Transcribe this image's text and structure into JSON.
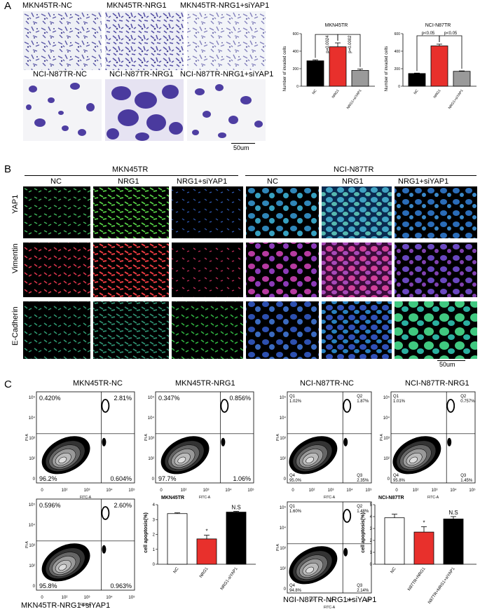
{
  "panelA": {
    "letter": "A",
    "top_titles": [
      "MKN45TR-NC",
      "MKN45TR-NRG1",
      "MKN45TR-NRG1+siYAP1"
    ],
    "bottom_titles": [
      "NCI-N87TR-NC",
      "NCI-N87TR-NRG1",
      "NCI-N87TR-NRG1+siYAP1"
    ],
    "scale": "50um",
    "colors": {
      "mkn_stain": "#6b66b8",
      "nci_stain": "#4d3fa0",
      "bg": "#eef0f4"
    }
  },
  "panelB": {
    "letter": "B",
    "group1": "MKN45TR",
    "group2": "NCI-N87TR",
    "columns": [
      "NC",
      "NRG1",
      "NRG1+siYAP1",
      "NC",
      "NRG1",
      "NRG1+siYAP1"
    ],
    "rows": [
      "YAP1",
      "Vimentin",
      "E-Cadherin"
    ],
    "scale": "50um"
  },
  "panelC": {
    "letter": "C",
    "flow": [
      {
        "title": "MKN45TR-NC",
        "q1": "0.420%",
        "q2": "2.81%",
        "q4": "96.2%",
        "q3": "0.604%"
      },
      {
        "title": "MKN45TR-NRG1",
        "q1": "0.347%",
        "q2": "0.856%",
        "q4": "97.7%",
        "q3": "1.06%"
      },
      {
        "title": "NCI-N87TR-NC",
        "q1": "1.02%",
        "q2": "1.87%",
        "q4": "95.0%",
        "q3": "2.35%",
        "q1n": "Q1",
        "q2n": "Q2",
        "q3n": "Q3",
        "q4n": "Q4"
      },
      {
        "title": "NCI-N87TR-NRG1",
        "q1": "1.01%",
        "q2": "0.757%",
        "q4": "95.8%",
        "q3": "1.45%",
        "q1n": "Q1",
        "q2n": "Q2",
        "q3n": "Q3",
        "q4n": "Q4"
      },
      {
        "title": "MKN45TR-NRG1+siYAP1",
        "q1": "0.596%",
        "q2": "2.60%",
        "q4": "95.8%",
        "q3": "0.963%"
      },
      {
        "title": "NCI-N87TR-NRG1+siYAP1",
        "q1": "1.60%",
        "q2": "1.48%",
        "q4": "94.8%",
        "q3": "2.14%",
        "q1n": "Q1",
        "q2n": "Q2",
        "q3n": "Q3",
        "q4n": "Q4"
      }
    ],
    "axis_x": "FITC-A",
    "axis_y": "PI-A"
  },
  "chart_data": [
    {
      "type": "bar",
      "title": "MKN45TR",
      "ylabel": "Number of invaded cells",
      "categories": [
        "NC",
        "NRG1",
        "NRG1+siYAP1"
      ],
      "values": [
        290,
        450,
        180
      ],
      "errors": [
        10,
        45,
        15
      ],
      "colors": [
        "#000000",
        "#e8302c",
        "#9a9a9a"
      ],
      "ylim": [
        0,
        600
      ],
      "annotations": [
        "p=0.0024",
        "p=0.0002"
      ]
    },
    {
      "type": "bar",
      "title": "NCI-N87TR",
      "ylabel": "Number of invaded cells",
      "categories": [
        "NC",
        "NRG1",
        "NRG1+siYAP1"
      ],
      "values": [
        145,
        460,
        170
      ],
      "errors": [
        5,
        20,
        5
      ],
      "colors": [
        "#000000",
        "#e8302c",
        "#9a9a9a"
      ],
      "ylim": [
        0,
        600
      ],
      "annotations": [
        "p<0.05",
        "p<0.05"
      ]
    },
    {
      "type": "bar",
      "title": "MKN45TR",
      "ylabel": "cell apoptosis(%)",
      "categories": [
        "NC",
        "NRG1",
        "NRG1-siYAP1"
      ],
      "values": [
        3.4,
        1.7,
        3.5
      ],
      "errors": [
        0.05,
        0.25,
        0.05
      ],
      "colors": [
        "#ffffff",
        "#e8302c",
        "#000000"
      ],
      "ylim": [
        0,
        4
      ],
      "annotations": [
        "*",
        "N.S"
      ]
    },
    {
      "type": "bar",
      "title": "NCI-N87TR",
      "ylabel": "cell apoptosis(%)",
      "categories": [
        "NC",
        "N87TR+NRG1",
        "N87TR+NRG1+siYAP1"
      ],
      "values": [
        3.9,
        2.7,
        3.8
      ],
      "errors": [
        0.3,
        0.45,
        0.2
      ],
      "colors": [
        "#ffffff",
        "#e8302c",
        "#000000"
      ],
      "ylim": [
        0,
        5
      ],
      "annotations": [
        "*",
        "N.S"
      ]
    }
  ]
}
